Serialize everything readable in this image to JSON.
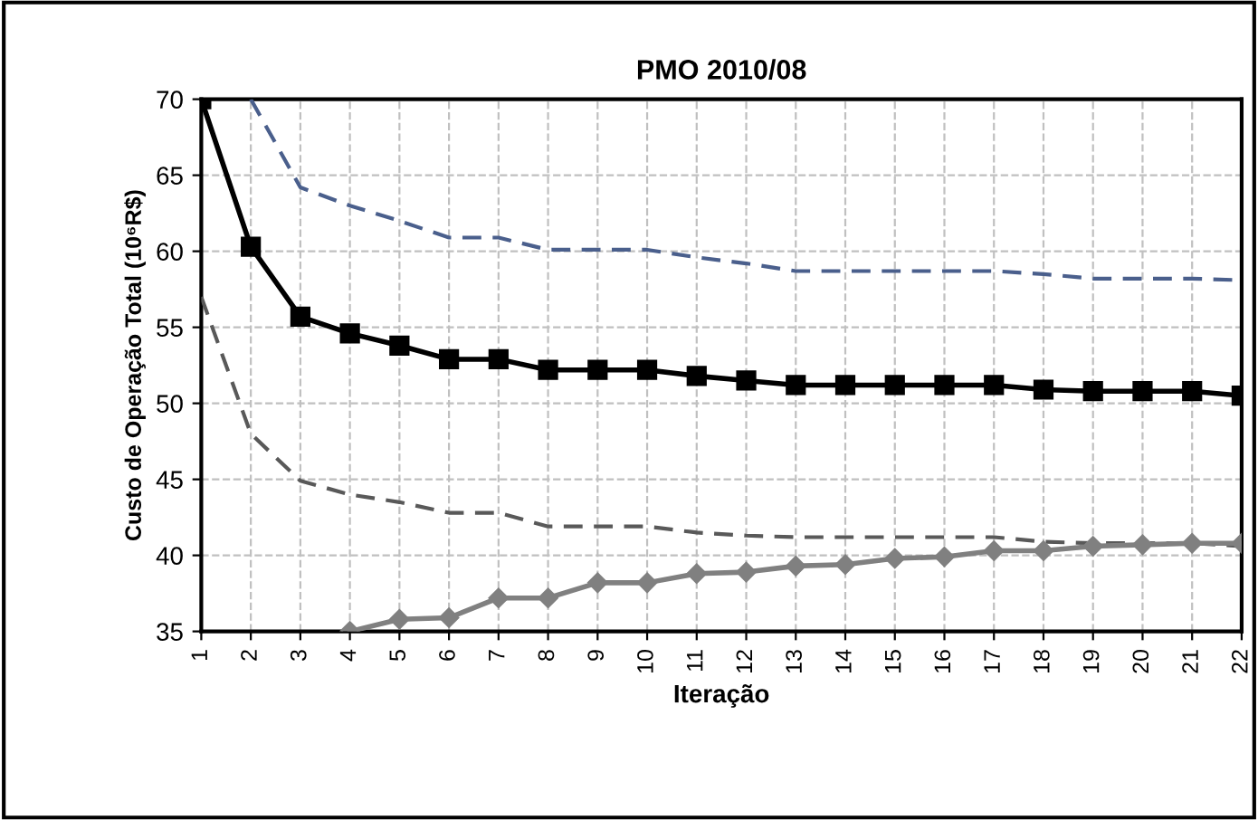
{
  "chart_data": {
    "type": "line",
    "title": "PMO 2010/08",
    "xlabel": "Iteração",
    "ylabel": "Custo de Operação Total (10⁶R$)",
    "categories": [
      "1",
      "2",
      "3",
      "4",
      "5",
      "6",
      "7",
      "8",
      "9",
      "10",
      "11",
      "12",
      "13",
      "14",
      "15",
      "16",
      "17",
      "18",
      "19",
      "20",
      "21",
      "22"
    ],
    "series": [
      {
        "color": "#000000",
        "marker": "square",
        "line_style": "solid",
        "values": [
          70,
          60.3,
          55.7,
          54.6,
          53.8,
          52.9,
          52.9,
          52.2,
          52.2,
          52.2,
          51.8,
          51.5,
          51.2,
          51.2,
          51.2,
          51.2,
          51.2,
          50.9,
          50.8,
          50.8,
          50.8,
          50.5
        ]
      },
      {
        "color": "#4a5f8c",
        "marker": "none",
        "line_style": "dashed",
        "values": [
          null,
          70,
          64.2,
          63,
          62,
          60.9,
          60.9,
          60.1,
          60.1,
          60.1,
          59.6,
          59.2,
          58.7,
          58.7,
          58.7,
          58.7,
          58.7,
          58.5,
          58.2,
          58.2,
          58.2,
          58.1
        ]
      },
      {
        "color": "#595959",
        "marker": "none",
        "line_style": "dashed",
        "values": [
          57,
          48,
          44.9,
          44,
          43.5,
          42.8,
          42.8,
          41.9,
          41.9,
          41.9,
          41.5,
          41.3,
          41.2,
          41.2,
          41.2,
          41.2,
          41.2,
          40.9,
          40.8,
          40.8,
          40.8,
          40.6
        ]
      },
      {
        "color": "#808080",
        "marker": "diamond",
        "line_style": "solid",
        "values": [
          null,
          null,
          null,
          35,
          35.8,
          35.9,
          37.2,
          37.2,
          38.2,
          38.2,
          38.8,
          38.9,
          39.3,
          39.4,
          39.8,
          39.9,
          40.3,
          40.3,
          40.6,
          40.7,
          40.8,
          40.8
        ]
      }
    ],
    "ylim": [
      35,
      70
    ],
    "yticks": [
      35,
      40,
      45,
      50,
      55,
      60,
      65,
      70
    ],
    "grid": true
  }
}
